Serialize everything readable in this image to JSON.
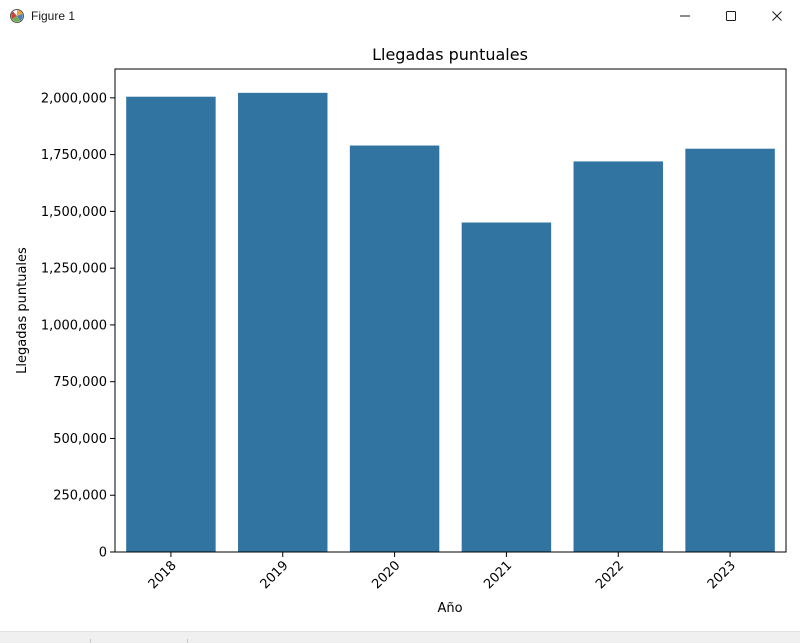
{
  "window": {
    "title": "Figure 1",
    "icons": [
      "matplotlib-icon",
      "minimize-icon",
      "maximize-icon",
      "close-icon"
    ]
  },
  "chart_data": {
    "type": "bar",
    "title": "Llegadas puntuales",
    "xlabel": "Año",
    "ylabel": "Llegadas puntuales",
    "categories": [
      "2018",
      "2019",
      "2020",
      "2021",
      "2022",
      "2023"
    ],
    "values": [
      2005000,
      2022000,
      1790000,
      1451000,
      1720000,
      1776000
    ],
    "ylim": [
      0,
      2127000
    ],
    "yticks": [
      0,
      250000,
      500000,
      750000,
      1000000,
      1250000,
      1500000,
      1750000,
      2000000
    ],
    "ytick_labels": [
      "0",
      "250,000",
      "500,000",
      "750,000",
      "1,000,000",
      "1,250,000",
      "1,500,000",
      "1,750,000",
      "2,000,000"
    ],
    "bar_color": "#3274a1",
    "grid": false,
    "xtick_rotation": "45 degrees"
  }
}
